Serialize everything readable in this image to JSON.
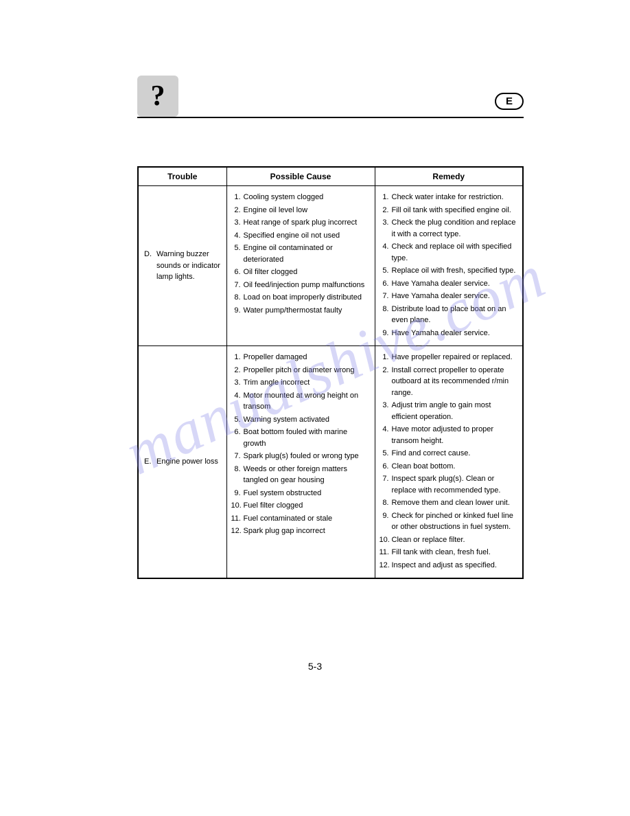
{
  "header": {
    "icon_glyph": "?",
    "section_letter": "E"
  },
  "table": {
    "columns": [
      "Trouble",
      "Possible Cause",
      "Remedy"
    ],
    "rows": [
      {
        "trouble_letter": "D.",
        "trouble_text": "Warning buzzer sounds or indicator lamp lights.",
        "causes": [
          "Cooling system clogged",
          "Engine oil level low",
          "Heat range of spark plug incorrect",
          "Specified engine oil not used",
          "Engine oil contaminated or deteriorated",
          "Oil filter clogged",
          "Oil feed/injection pump malfunctions",
          "Load on boat improperly distributed",
          "Water pump/thermostat faulty"
        ],
        "remedies": [
          "Check water intake for restriction.",
          "Fill oil tank with specified engine oil.",
          "Check the plug condition and replace it with a correct type.",
          "Check and replace oil with specified type.",
          "Replace oil with fresh, specified type.",
          "Have Yamaha dealer service.",
          "Have Yamaha dealer service.",
          "Distribute load to place boat on an even plane.",
          "Have Yamaha dealer service."
        ]
      },
      {
        "trouble_letter": "E.",
        "trouble_text": "Engine power loss",
        "causes": [
          "Propeller damaged",
          "Propeller pitch or diameter wrong",
          "Trim angle incorrect",
          "Motor mounted at wrong height on transom",
          "Warning system activated",
          "Boat bottom fouled with marine growth",
          "Spark plug(s) fouled or wrong type",
          "Weeds or other foreign matters tangled on gear housing",
          "Fuel system obstructed",
          "Fuel filter clogged",
          "Fuel contaminated or stale",
          "Spark plug gap incorrect"
        ],
        "remedies": [
          "Have propeller repaired or replaced.",
          "Install correct propeller to operate outboard at its recommended r/min range.",
          "Adjust trim angle to gain most efficient operation.",
          "Have motor adjusted to proper transom height.",
          "Find and correct cause.",
          "Clean boat bottom.",
          "Inspect spark plug(s). Clean or replace with recommended type.",
          "Remove them and clean lower unit.",
          "Check for pinched or kinked fuel line or other obstructions in fuel system.",
          "Clean or replace filter.",
          "Fill tank with clean, fresh fuel.",
          "Inspect and adjust as specified."
        ]
      }
    ]
  },
  "page_number": "5-3",
  "watermark_text": "manualshive.com"
}
